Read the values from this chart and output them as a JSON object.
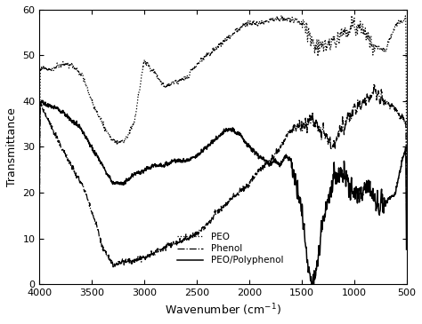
{
  "xlabel": "Wavenumber (cm$^{-1}$)",
  "ylabel": "Transmittance",
  "xlim": [
    4000,
    500
  ],
  "ylim": [
    0,
    60
  ],
  "xticks": [
    4000,
    3500,
    3000,
    2500,
    2000,
    1500,
    1000,
    500
  ],
  "yticks": [
    0,
    10,
    20,
    30,
    40,
    50,
    60
  ],
  "legend": [
    "PEO",
    "Phenol",
    "PEO/Polyphenol"
  ],
  "background": "#ffffff",
  "peo_knots_wn": [
    500,
    600,
    700,
    800,
    900,
    1000,
    1100,
    1200,
    1300,
    1400,
    1500,
    1600,
    1700,
    1800,
    1900,
    2000,
    2100,
    2200,
    2300,
    2400,
    2500,
    2600,
    2700,
    2800,
    2900,
    3000,
    3100,
    3200,
    3300,
    3400,
    3500,
    3600,
    3700,
    3800,
    3900,
    4000
  ],
  "peo_knots_val": [
    58,
    57,
    51,
    52,
    55,
    57,
    55,
    53,
    52,
    53,
    57,
    58,
    58,
    58,
    57,
    57,
    56,
    54,
    52,
    50,
    48,
    45,
    44,
    43,
    46,
    49,
    35,
    31,
    31,
    35,
    40,
    46,
    48,
    48,
    47,
    47
  ],
  "phenol_knots_wn": [
    500,
    600,
    700,
    800,
    900,
    1000,
    1100,
    1200,
    1300,
    1400,
    1500,
    1600,
    1700,
    1800,
    1900,
    2000,
    2100,
    2200,
    2300,
    2400,
    2500,
    2600,
    2700,
    2800,
    2900,
    3000,
    3100,
    3200,
    3300,
    3400,
    3500,
    3600,
    3700,
    3800,
    3900,
    4000
  ],
  "phenol_knots_val": [
    35,
    38,
    40,
    42,
    40,
    38,
    35,
    30,
    33,
    36,
    35,
    34,
    30,
    27,
    25,
    22,
    20,
    18,
    16,
    13,
    11,
    10,
    9,
    8,
    7,
    6,
    5,
    5,
    4,
    8,
    16,
    22,
    26,
    30,
    35,
    40
  ],
  "poly_knots_wn": [
    500,
    550,
    600,
    650,
    700,
    750,
    800,
    850,
    900,
    950,
    1000,
    1050,
    1100,
    1150,
    1200,
    1250,
    1300,
    1350,
    1380,
    1400,
    1430,
    1460,
    1500,
    1550,
    1600,
    1650,
    1700,
    1750,
    1800,
    1900,
    2000,
    2100,
    2200,
    2300,
    2400,
    2500,
    2600,
    2700,
    2800,
    2900,
    3000,
    3100,
    3200,
    3300,
    3400,
    3500,
    3600,
    3700,
    3800,
    3900,
    4000
  ],
  "poly_knots_val": [
    30,
    26,
    20,
    19,
    18,
    17,
    18,
    22,
    20,
    19,
    20,
    22,
    24,
    24,
    22,
    18,
    13,
    4,
    1,
    0.5,
    3,
    8,
    17,
    22,
    27,
    28,
    26,
    27,
    26,
    28,
    30,
    33,
    34,
    32,
    30,
    28,
    27,
    27,
    26,
    26,
    25,
    24,
    22,
    22,
    26,
    30,
    34,
    36,
    38,
    39,
    40
  ]
}
